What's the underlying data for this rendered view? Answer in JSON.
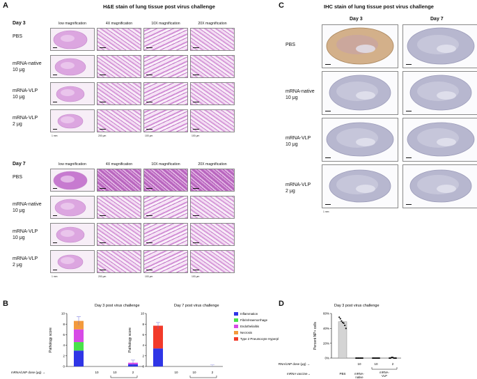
{
  "panelA": {
    "letter": "A",
    "title": "H&E stain of lung tissue post virus challenge",
    "day3": {
      "label": "Day 3"
    },
    "day7": {
      "label": "Day 7"
    },
    "columns": [
      "low magnification",
      "4X magnification",
      "10X magnification",
      "20X magnification"
    ],
    "rows": [
      {
        "l1": "PBS",
        "l2": ""
      },
      {
        "l1": "mRNA-native",
        "l2": "10 μg"
      },
      {
        "l1": "mRNA-VLP",
        "l2": "10 μg"
      },
      {
        "l1": "mRNA-VLP",
        "l2": "2 μg"
      }
    ],
    "scales": [
      "1 mm",
      "200 μm",
      "100 μm",
      "100 μm"
    ]
  },
  "panelC": {
    "letter": "C",
    "title": "IHC stain of lung tissue post virus challenge",
    "columns": [
      "Day 3",
      "Day 7"
    ],
    "rows": [
      {
        "l1": "PBS",
        "l2": ""
      },
      {
        "l1": "mRNA-native",
        "l2": "10 μg"
      },
      {
        "l1": "mRNA-VLP",
        "l2": "10 μg"
      },
      {
        "l1": "mRNA-VLP",
        "l2": "2 μg"
      }
    ],
    "scale": "1 mm"
  },
  "panelB": {
    "letter": "B",
    "legend": [
      {
        "name": "Inflammation",
        "color": "#2f35e6"
      },
      {
        "name": "Fibrin/Haemorrhage",
        "color": "#48e24a"
      },
      {
        "name": "Endothelialitis",
        "color": "#d74ae6"
      },
      {
        "name": "Necrosis",
        "color": "#f39a3c"
      },
      {
        "name": "Type 2 Pneumocyte Hyperpl",
        "color": "#f23a2a"
      }
    ],
    "dose_label": "mRNA/LNP dose (μg) →",
    "vaccine_label": "mRNA vaccine→",
    "doses": [
      "",
      "10",
      "10",
      "2"
    ],
    "groups": [
      "PBS",
      "mRNA-\nnative",
      "mRNA-\nVLP"
    ]
  },
  "panelD": {
    "letter": "D",
    "dose_label": "mRNA/LNP dose (μg) →",
    "vaccine_label": "mRNA vaccine→",
    "doses": [
      "",
      "10",
      "10",
      "2"
    ]
  },
  "chart_data": [
    {
      "type": "bar",
      "title": "Day 3 post virus challenge",
      "ylabel": "Pathology score",
      "ylim": [
        0,
        10
      ],
      "yticks": [
        "0",
        "2",
        "4",
        "6",
        "8",
        "10"
      ],
      "categories": [
        "PBS",
        "mRNA-native 10",
        "mRNA-VLP 10",
        "mRNA-VLP 2"
      ],
      "series": [
        {
          "name": "Inflammation",
          "values": [
            3.0,
            0,
            0,
            0.4
          ]
        },
        {
          "name": "Fibrin/Haemorrhage",
          "values": [
            1.6,
            0,
            0,
            0
          ]
        },
        {
          "name": "Endothelialitis",
          "values": [
            2.4,
            0,
            0,
            0.3
          ]
        },
        {
          "name": "Necrosis",
          "values": [
            1.6,
            0,
            0,
            0
          ]
        },
        {
          "name": "Type 2 Pneumocyte Hyperpl",
          "values": [
            0,
            0,
            0,
            0
          ]
        }
      ],
      "error": [
        0.8,
        0,
        0,
        0.5
      ]
    },
    {
      "type": "bar",
      "title": "Day 7 post virus challenge",
      "ylabel": "Pathology score",
      "ylim": [
        0,
        10
      ],
      "yticks": [
        "0",
        "2",
        "4",
        "6",
        "8",
        "10"
      ],
      "categories": [
        "PBS",
        "mRNA-native 10",
        "mRNA-VLP 10",
        "mRNA-VLP 2"
      ],
      "series": [
        {
          "name": "Inflammation",
          "values": [
            3.4,
            0,
            0,
            0
          ]
        },
        {
          "name": "Fibrin/Haemorrhage",
          "values": [
            0,
            0,
            0,
            0
          ]
        },
        {
          "name": "Endothelialitis",
          "values": [
            0,
            0,
            0,
            0
          ]
        },
        {
          "name": "Necrosis",
          "values": [
            0,
            0,
            0,
            0
          ]
        },
        {
          "name": "Type 2 Pneumocyte Hyperpl",
          "values": [
            4.3,
            0,
            0,
            0
          ]
        }
      ],
      "error": [
        0.6,
        0,
        0,
        0.3
      ]
    },
    {
      "type": "bar",
      "title": "Day 3 post virus challenge",
      "ylabel": "Percent NP+ cells",
      "ylim": [
        0,
        60
      ],
      "yticks": [
        "0%",
        "20%",
        "40%",
        "60%"
      ],
      "categories": [
        "PBS",
        "mRNA-native 10",
        "mRNA-VLP 10",
        "mRNA-VLP 2"
      ],
      "values": [
        49,
        0,
        0,
        0
      ],
      "points": [
        [
          55,
          53,
          50,
          48,
          47,
          44,
          40
        ],
        [
          0,
          0,
          0,
          0,
          0,
          0,
          0
        ],
        [
          0,
          0,
          0,
          0,
          0,
          0,
          0
        ],
        [
          0,
          0,
          1,
          1,
          0,
          0,
          0
        ]
      ]
    }
  ]
}
